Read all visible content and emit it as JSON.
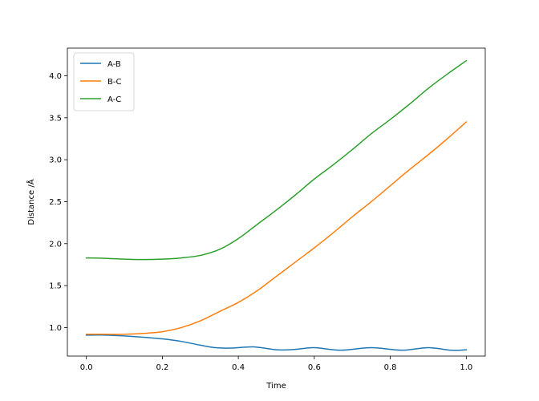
{
  "chart_data": {
    "type": "line",
    "xlabel": "Time",
    "ylabel": "Distance /Å",
    "xlim": [
      -0.05,
      1.05
    ],
    "ylim": [
      0.66,
      4.33
    ],
    "xticks": [
      0.0,
      0.2,
      0.4,
      0.6,
      0.8,
      1.0
    ],
    "xtick_labels": [
      "0.0",
      "0.2",
      "0.4",
      "0.6",
      "0.8",
      "1.0"
    ],
    "yticks": [
      1.0,
      1.5,
      2.0,
      2.5,
      3.0,
      3.5,
      4.0
    ],
    "ytick_labels": [
      "1.0",
      "1.5",
      "2.0",
      "2.5",
      "3.0",
      "3.5",
      "4.0"
    ],
    "grid": false,
    "legend_position": "upper-left",
    "series": [
      {
        "name": "A-B",
        "color": "#1f77b4",
        "x": [
          0.0,
          0.05,
          0.1,
          0.15,
          0.2,
          0.25,
          0.3,
          0.34,
          0.38,
          0.44,
          0.5,
          0.55,
          0.6,
          0.67,
          0.75,
          0.83,
          0.9,
          0.96,
          1.0
        ],
        "y": [
          0.91,
          0.91,
          0.9,
          0.885,
          0.865,
          0.835,
          0.79,
          0.76,
          0.755,
          0.77,
          0.735,
          0.74,
          0.76,
          0.73,
          0.76,
          0.73,
          0.76,
          0.73,
          0.735
        ]
      },
      {
        "name": "B-C",
        "color": "#ff7f0e",
        "x": [
          0.0,
          0.05,
          0.1,
          0.15,
          0.2,
          0.25,
          0.3,
          0.35,
          0.4,
          0.45,
          0.5,
          0.55,
          0.6,
          0.65,
          0.7,
          0.75,
          0.8,
          0.85,
          0.9,
          0.95,
          1.0
        ],
        "y": [
          0.92,
          0.92,
          0.92,
          0.93,
          0.95,
          1.0,
          1.08,
          1.19,
          1.3,
          1.44,
          1.61,
          1.78,
          1.95,
          2.13,
          2.32,
          2.5,
          2.69,
          2.88,
          3.06,
          3.25,
          3.45
        ]
      },
      {
        "name": "A-C",
        "color": "#2ca02c",
        "x": [
          0.0,
          0.05,
          0.1,
          0.15,
          0.2,
          0.25,
          0.3,
          0.35,
          0.4,
          0.45,
          0.5,
          0.55,
          0.6,
          0.65,
          0.7,
          0.75,
          0.8,
          0.85,
          0.9,
          0.95,
          1.0
        ],
        "y": [
          1.83,
          1.825,
          1.815,
          1.81,
          1.815,
          1.83,
          1.86,
          1.93,
          2.06,
          2.23,
          2.4,
          2.58,
          2.77,
          2.94,
          3.12,
          3.31,
          3.48,
          3.66,
          3.85,
          4.02,
          4.18
        ]
      }
    ]
  }
}
